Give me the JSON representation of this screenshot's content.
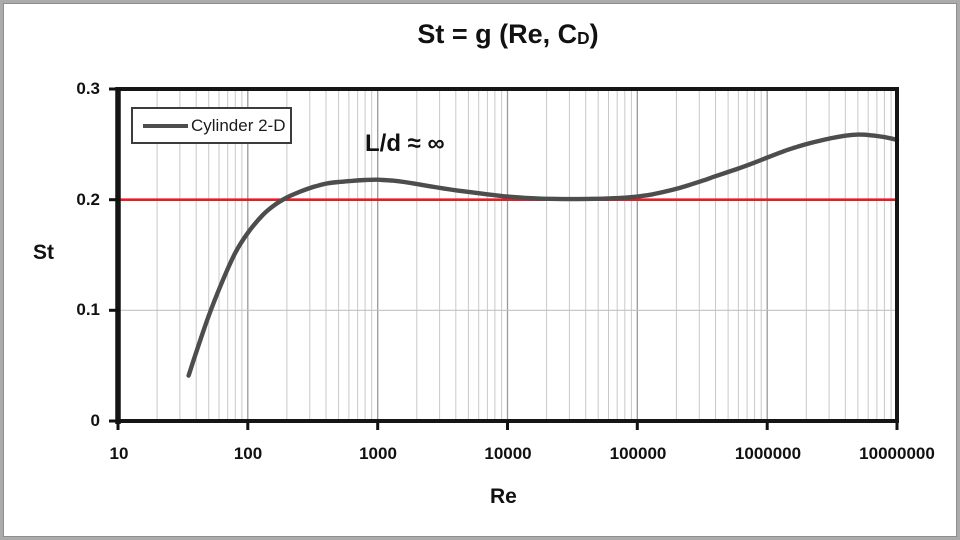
{
  "title": {
    "prefix": "St = g (Re, C",
    "subscript": "D",
    "suffix": ")"
  },
  "axes": {
    "y_label": "St",
    "x_label": "Re",
    "y_ticks": [
      "0.3",
      "0.2",
      "0.1",
      "0"
    ],
    "x_ticks": [
      "10",
      "100",
      "1000",
      "10000",
      "100000",
      "1000000",
      "10000000"
    ]
  },
  "legend": {
    "label": "Cylinder 2-D"
  },
  "annotation_text": "L/d ≈ ∞",
  "colors": {
    "curve": "#4d4d4d",
    "reference_line": "#e81c24",
    "minor_grid": "#c9c9c9",
    "major_grid": "#999999",
    "horizontal_grid": "#c2c2c2",
    "axis_frame": "#151515"
  },
  "chart_data": {
    "type": "line",
    "title": "St = g (Re, C_D)",
    "xlabel": "Re",
    "ylabel": "St",
    "x_scale": "log",
    "xlim": [
      10,
      10000000
    ],
    "ylim": [
      0,
      0.3
    ],
    "x_tick_values": [
      10,
      100,
      1000,
      10000,
      100000,
      1000000,
      10000000
    ],
    "y_tick_values": [
      0,
      0.1,
      0.2,
      0.3
    ],
    "grid": {
      "vertical_log_minor": true,
      "horizontal_lines_at": [
        0.1,
        0.2
      ]
    },
    "legend_position": "top-left",
    "reference_line": {
      "y": 0.2,
      "color": "#e81c24"
    },
    "annotations": [
      {
        "text": "L/d ≈ ∞",
        "re": 2200,
        "st": 0.245
      }
    ],
    "series": [
      {
        "name": "Cylinder 2-D",
        "color": "#4d4d4d",
        "points": [
          [
            35,
            0.041
          ],
          [
            40,
            0.062
          ],
          [
            50,
            0.095
          ],
          [
            63,
            0.125
          ],
          [
            80,
            0.152
          ],
          [
            100,
            0.17
          ],
          [
            130,
            0.186
          ],
          [
            160,
            0.195
          ],
          [
            200,
            0.202
          ],
          [
            250,
            0.207
          ],
          [
            320,
            0.2115
          ],
          [
            400,
            0.2145
          ],
          [
            500,
            0.216
          ],
          [
            630,
            0.217
          ],
          [
            800,
            0.2178
          ],
          [
            1000,
            0.218
          ],
          [
            1300,
            0.2172
          ],
          [
            1600,
            0.216
          ],
          [
            2000,
            0.2142
          ],
          [
            2500,
            0.2122
          ],
          [
            3200,
            0.2102
          ],
          [
            4000,
            0.2085
          ],
          [
            5000,
            0.207
          ],
          [
            6300,
            0.2055
          ],
          [
            8000,
            0.204
          ],
          [
            10000,
            0.2028
          ],
          [
            13000,
            0.2018
          ],
          [
            16000,
            0.2012
          ],
          [
            20000,
            0.2008
          ],
          [
            32000,
            0.2005
          ],
          [
            50000,
            0.2008
          ],
          [
            63000,
            0.2012
          ],
          [
            80000,
            0.2018
          ],
          [
            100000,
            0.2028
          ],
          [
            130000,
            0.2048
          ],
          [
            160000,
            0.207
          ],
          [
            200000,
            0.2098
          ],
          [
            250000,
            0.2132
          ],
          [
            320000,
            0.2172
          ],
          [
            400000,
            0.2212
          ],
          [
            500000,
            0.225
          ],
          [
            630000,
            0.229
          ],
          [
            800000,
            0.2335
          ],
          [
            1000000,
            0.238
          ],
          [
            1300000,
            0.2432
          ],
          [
            1600000,
            0.2468
          ],
          [
            2000000,
            0.2502
          ],
          [
            2500000,
            0.253
          ],
          [
            3200000,
            0.2558
          ],
          [
            4000000,
            0.2578
          ],
          [
            5000000,
            0.2588
          ],
          [
            6300000,
            0.2582
          ],
          [
            8000000,
            0.2565
          ],
          [
            10000000,
            0.254
          ]
        ]
      }
    ]
  }
}
